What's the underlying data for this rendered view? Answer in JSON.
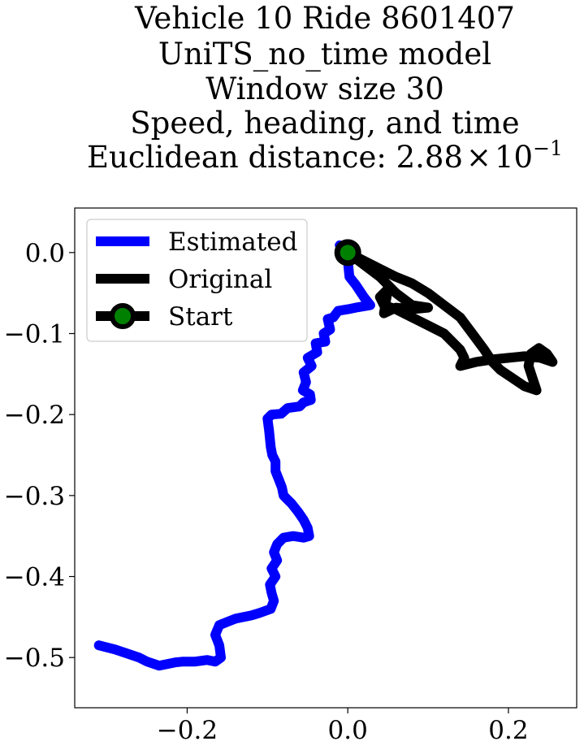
{
  "chart_data": {
    "type": "line",
    "title_lines": [
      "Vehicle 10 Ride 8601407",
      "UniTS_no_time model",
      "Window size 30",
      "Speed, heading, and time"
    ],
    "title_metric_prefix": "Euclidean distance: ",
    "title_metric_mantissa": "2.88",
    "title_metric_times": "×",
    "title_metric_base": "10",
    "title_metric_exponent": "−1",
    "xlim": [
      -0.34,
      0.285
    ],
    "ylim": [
      -0.562,
      0.055
    ],
    "x_ticks": [
      {
        "value": -0.2,
        "label": "−0.2"
      },
      {
        "value": 0.0,
        "label": "0.0"
      },
      {
        "value": 0.2,
        "label": "0.2"
      }
    ],
    "y_ticks": [
      {
        "value": 0.0,
        "label": "0.0"
      },
      {
        "value": -0.1,
        "label": "−0.1"
      },
      {
        "value": -0.2,
        "label": "−0.2"
      },
      {
        "value": -0.3,
        "label": "−0.3"
      },
      {
        "value": -0.4,
        "label": "−0.4"
      },
      {
        "value": -0.5,
        "label": "−0.5"
      }
    ],
    "legend_position": "upper-left",
    "series": [
      {
        "name": "Estimated",
        "color": "#0000ff",
        "points": [
          [
            0.0,
            0.0
          ],
          [
            -0.01,
            0.009
          ],
          [
            0.0,
            -0.01
          ],
          [
            0.002,
            -0.03
          ],
          [
            0.01,
            -0.04
          ],
          [
            0.02,
            -0.055
          ],
          [
            0.028,
            -0.065
          ],
          [
            0.01,
            -0.068
          ],
          [
            0.0,
            -0.07
          ],
          [
            -0.012,
            -0.072
          ],
          [
            -0.018,
            -0.08
          ],
          [
            -0.025,
            -0.082
          ],
          [
            -0.022,
            -0.095
          ],
          [
            -0.03,
            -0.1
          ],
          [
            -0.028,
            -0.11
          ],
          [
            -0.04,
            -0.112
          ],
          [
            -0.038,
            -0.123
          ],
          [
            -0.05,
            -0.13
          ],
          [
            -0.045,
            -0.14
          ],
          [
            -0.055,
            -0.148
          ],
          [
            -0.052,
            -0.16
          ],
          [
            -0.056,
            -0.17
          ],
          [
            -0.047,
            -0.175
          ],
          [
            -0.046,
            -0.182
          ],
          [
            -0.055,
            -0.185
          ],
          [
            -0.06,
            -0.19
          ],
          [
            -0.075,
            -0.192
          ],
          [
            -0.083,
            -0.199
          ],
          [
            -0.095,
            -0.2
          ],
          [
            -0.1,
            -0.205
          ],
          [
            -0.098,
            -0.22
          ],
          [
            -0.096,
            -0.24
          ],
          [
            -0.094,
            -0.25
          ],
          [
            -0.09,
            -0.258
          ],
          [
            -0.09,
            -0.27
          ],
          [
            -0.086,
            -0.28
          ],
          [
            -0.082,
            -0.29
          ],
          [
            -0.08,
            -0.3
          ],
          [
            -0.075,
            -0.305
          ],
          [
            -0.07,
            -0.31
          ],
          [
            -0.062,
            -0.32
          ],
          [
            -0.055,
            -0.33
          ],
          [
            -0.05,
            -0.34
          ],
          [
            -0.048,
            -0.35
          ],
          [
            -0.055,
            -0.352
          ],
          [
            -0.068,
            -0.35
          ],
          [
            -0.08,
            -0.352
          ],
          [
            -0.088,
            -0.36
          ],
          [
            -0.092,
            -0.37
          ],
          [
            -0.088,
            -0.38
          ],
          [
            -0.095,
            -0.39
          ],
          [
            -0.09,
            -0.4
          ],
          [
            -0.097,
            -0.41
          ],
          [
            -0.095,
            -0.42
          ],
          [
            -0.092,
            -0.43
          ],
          [
            -0.096,
            -0.44
          ],
          [
            -0.11,
            -0.445
          ],
          [
            -0.12,
            -0.448
          ],
          [
            -0.13,
            -0.45
          ],
          [
            -0.14,
            -0.452
          ],
          [
            -0.15,
            -0.456
          ],
          [
            -0.16,
            -0.46
          ],
          [
            -0.165,
            -0.472
          ],
          [
            -0.16,
            -0.485
          ],
          [
            -0.158,
            -0.5
          ],
          [
            -0.165,
            -0.505
          ],
          [
            -0.175,
            -0.503
          ],
          [
            -0.19,
            -0.505
          ],
          [
            -0.205,
            -0.505
          ],
          [
            -0.215,
            -0.506
          ],
          [
            -0.225,
            -0.508
          ],
          [
            -0.235,
            -0.51
          ],
          [
            -0.25,
            -0.505
          ],
          [
            -0.26,
            -0.5
          ],
          [
            -0.275,
            -0.495
          ],
          [
            -0.29,
            -0.49
          ],
          [
            -0.31,
            -0.485
          ]
        ]
      },
      {
        "name": "Original",
        "color": "#000000",
        "points": [
          [
            0.0,
            0.0
          ],
          [
            0.02,
            -0.01
          ],
          [
            0.04,
            -0.02
          ],
          [
            0.06,
            -0.03
          ],
          [
            0.08,
            -0.038
          ],
          [
            0.1,
            -0.05
          ],
          [
            0.12,
            -0.065
          ],
          [
            0.14,
            -0.08
          ],
          [
            0.155,
            -0.1
          ],
          [
            0.17,
            -0.12
          ],
          [
            0.18,
            -0.135
          ],
          [
            0.19,
            -0.145
          ],
          [
            0.205,
            -0.155
          ],
          [
            0.22,
            -0.165
          ],
          [
            0.235,
            -0.17
          ],
          [
            0.23,
            -0.155
          ],
          [
            0.225,
            -0.14
          ],
          [
            0.228,
            -0.125
          ],
          [
            0.238,
            -0.118
          ],
          [
            0.248,
            -0.125
          ],
          [
            0.255,
            -0.135
          ],
          [
            0.24,
            -0.13
          ],
          [
            0.22,
            -0.128
          ],
          [
            0.2,
            -0.13
          ],
          [
            0.18,
            -0.132
          ],
          [
            0.16,
            -0.135
          ],
          [
            0.14,
            -0.14
          ],
          [
            0.145,
            -0.13
          ],
          [
            0.14,
            -0.12
          ],
          [
            0.12,
            -0.1
          ],
          [
            0.1,
            -0.09
          ],
          [
            0.08,
            -0.08
          ],
          [
            0.06,
            -0.07
          ],
          [
            0.045,
            -0.065
          ],
          [
            0.04,
            -0.055
          ],
          [
            0.05,
            -0.045
          ],
          [
            0.045,
            -0.075
          ],
          [
            0.06,
            -0.068
          ],
          [
            0.08,
            -0.07
          ],
          [
            0.1,
            -0.068
          ],
          [
            0.08,
            -0.065
          ],
          [
            0.06,
            -0.05
          ],
          [
            0.04,
            -0.03
          ],
          [
            0.02,
            -0.015
          ],
          [
            0.0,
            0.0
          ]
        ]
      },
      {
        "name": "Start",
        "color": "#000000",
        "marker_color": "#008000",
        "points": [
          [
            0.0,
            0.0
          ]
        ]
      }
    ]
  }
}
